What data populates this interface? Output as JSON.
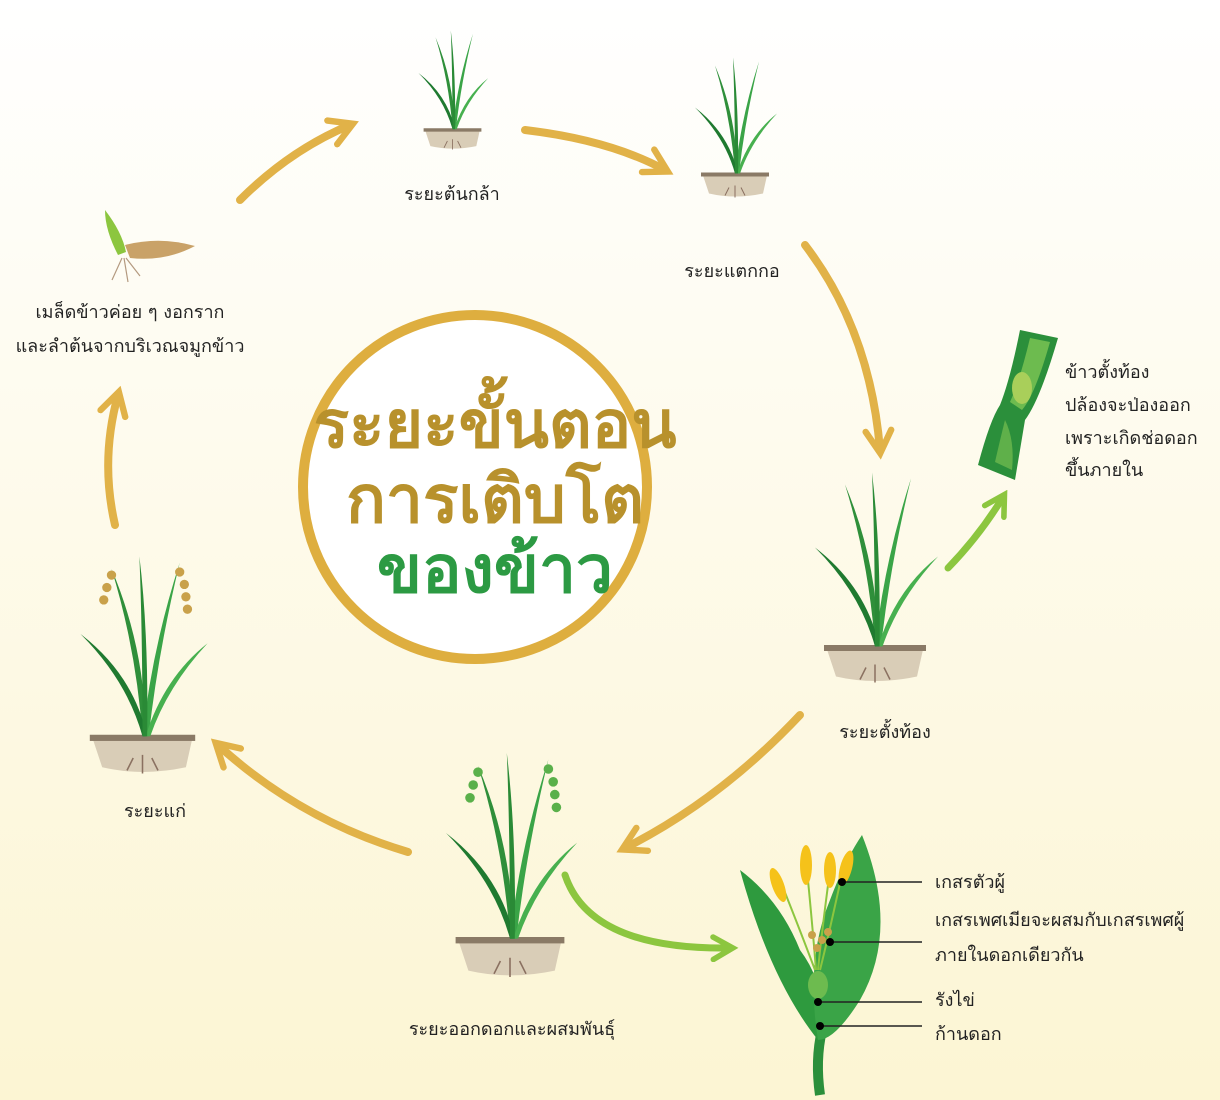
{
  "title": {
    "lines": [
      "ระยะขั้นตอน",
      "การเติบโต",
      "ของข้าว"
    ]
  },
  "seed": {
    "lines": [
      "เมล็ดข้าวค่อย ๆ งอกราก",
      "และลำต้นจากบริเวณจมูกข้าว"
    ]
  },
  "stages": [
    {
      "label": "ระยะต้นกล้า"
    },
    {
      "label": "ระยะแตกกอ"
    },
    {
      "label": "ระยะตั้งท้อง"
    },
    {
      "label": "ระยะออกดอกและผสมพันธุ์"
    },
    {
      "label": "ระยะแก่"
    }
  ],
  "booting_note": {
    "lines": [
      "ข้าวตั้งท้อง",
      "ปล้องจะป่องออก",
      "เพราะเกิดช่อดอก",
      "ขึ้นภายใน"
    ]
  },
  "flower_parts": [
    {
      "label": "เกสรตัวผู้"
    },
    {
      "label": "เกสรเพศเมียจะผสมกับเกสรเพศผู้"
    },
    {
      "label": "ภายในดอกเดียวกัน"
    },
    {
      "label": "รังไข่"
    },
    {
      "label": "ก้านดอก"
    }
  ]
}
